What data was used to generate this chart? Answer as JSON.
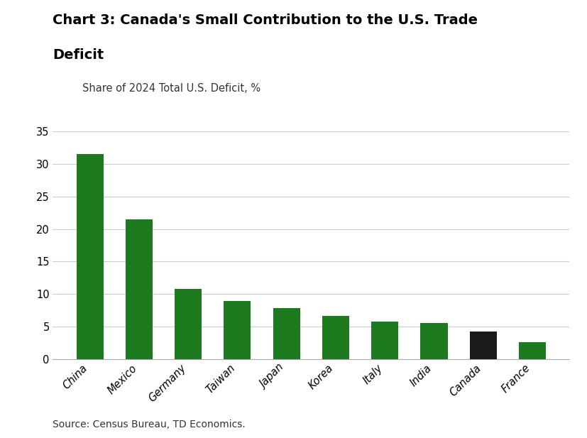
{
  "title_line1": "Chart 3: Canada's Small Contribution to the U.S. Trade",
  "title_line2": "Deficit",
  "subtitle": "Share of 2024 Total U.S. Deficit, %",
  "source": "Source: Census Bureau, TD Economics.",
  "categories": [
    "China",
    "Mexico",
    "Germany",
    "Taiwan",
    "Japan",
    "Korea",
    "Italy",
    "India",
    "Canada",
    "France"
  ],
  "values": [
    31.5,
    21.5,
    10.8,
    8.9,
    7.9,
    6.7,
    5.8,
    5.6,
    4.3,
    2.6
  ],
  "bar_colors": [
    "#1e7a1e",
    "#1e7a1e",
    "#1e7a1e",
    "#1e7a1e",
    "#1e7a1e",
    "#1e7a1e",
    "#1e7a1e",
    "#1e7a1e",
    "#1a1a1a",
    "#1e7a1e"
  ],
  "ylim": [
    0,
    35
  ],
  "yticks": [
    0,
    5,
    10,
    15,
    20,
    25,
    30,
    35
  ],
  "title_fontsize": 14,
  "subtitle_fontsize": 10.5,
  "tick_fontsize": 10.5,
  "source_fontsize": 10,
  "background_color": "#ffffff",
  "grid_color": "#cccccc",
  "bar_width": 0.55
}
